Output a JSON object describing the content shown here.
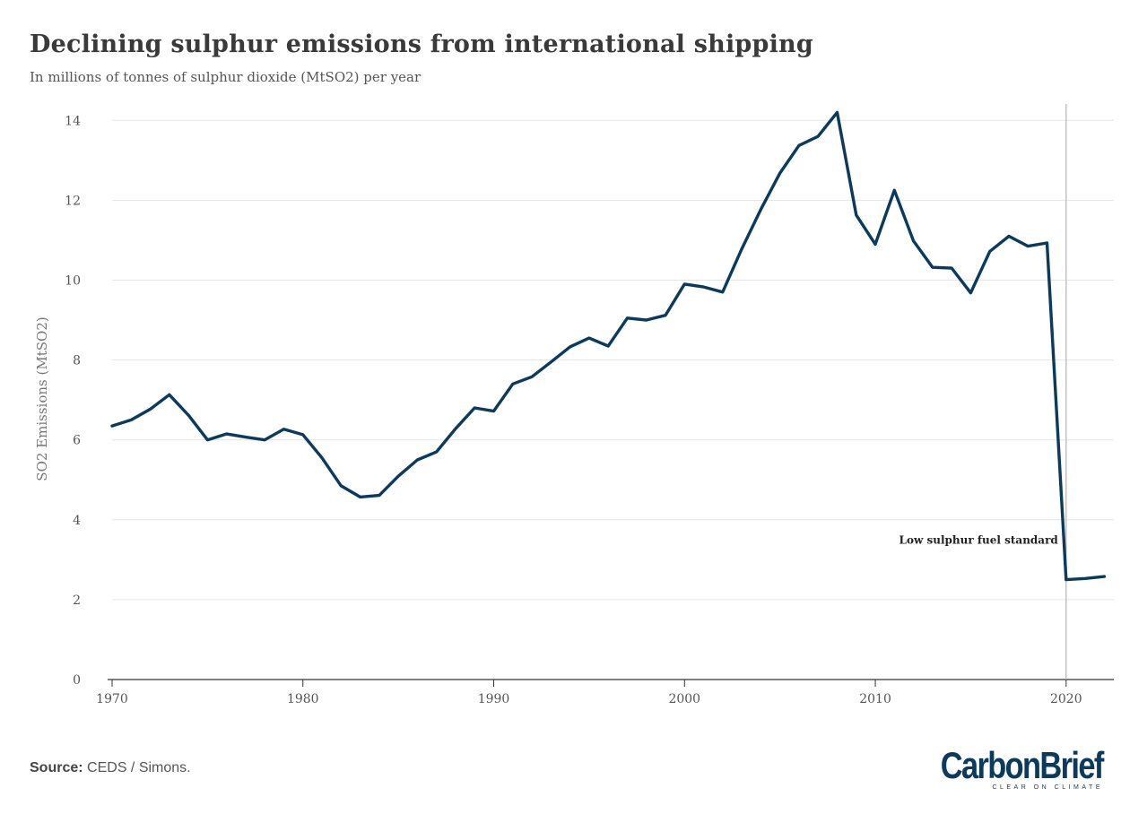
{
  "chart_data": {
    "type": "line",
    "title": "Declining sulphur emissions from international shipping",
    "subtitle": "In millions of tonnes of sulphur dioxide (MtSO2) per year",
    "ylabel": "SO2 Emissions (MtSO2)",
    "xlabel": "",
    "xlim": [
      1970,
      2022.5
    ],
    "ylim": [
      0,
      14.5
    ],
    "x_ticks": [
      1970,
      1980,
      1990,
      2000,
      2010,
      2020
    ],
    "y_ticks": [
      0,
      2,
      4,
      6,
      8,
      10,
      12,
      14
    ],
    "grid": "horizontal",
    "series": [
      {
        "color": "#0c3a5c",
        "x": [
          1970,
          1971,
          1972,
          1973,
          1974,
          1975,
          1976,
          1977,
          1978,
          1979,
          1980,
          1981,
          1982,
          1983,
          1984,
          1985,
          1986,
          1987,
          1988,
          1989,
          1990,
          1991,
          1992,
          1993,
          1994,
          1995,
          1996,
          1997,
          1998,
          1999,
          2000,
          2001,
          2002,
          2003,
          2004,
          2005,
          2006,
          2007,
          2008,
          2009,
          2010,
          2011,
          2012,
          2013,
          2014,
          2015,
          2016,
          2017,
          2018,
          2019,
          2020,
          2021,
          2022
        ],
        "y": [
          6.35,
          6.5,
          6.77,
          7.13,
          6.62,
          6.0,
          6.15,
          6.07,
          6.0,
          6.27,
          6.13,
          5.55,
          4.85,
          4.57,
          4.61,
          5.09,
          5.5,
          5.7,
          6.28,
          6.8,
          6.72,
          7.4,
          7.58,
          7.95,
          8.33,
          8.55,
          8.35,
          9.05,
          9.0,
          9.12,
          9.9,
          9.83,
          9.7,
          10.78,
          11.77,
          12.68,
          13.37,
          13.6,
          14.2,
          11.63,
          10.9,
          12.25,
          10.98,
          10.32,
          10.3,
          9.68,
          10.72,
          11.1,
          10.85,
          10.93,
          2.5,
          2.53,
          2.58
        ]
      }
    ],
    "annotations": [
      {
        "text": "Low sulphur fuel standard",
        "x": 2020
      }
    ]
  },
  "footer": {
    "source_label": "Source:",
    "source_text": "CEDS / Simons."
  },
  "brand": {
    "name": "CarbonBrief",
    "tagline": "CLEAR ON CLIMATE",
    "color": "#0c3a5c"
  }
}
